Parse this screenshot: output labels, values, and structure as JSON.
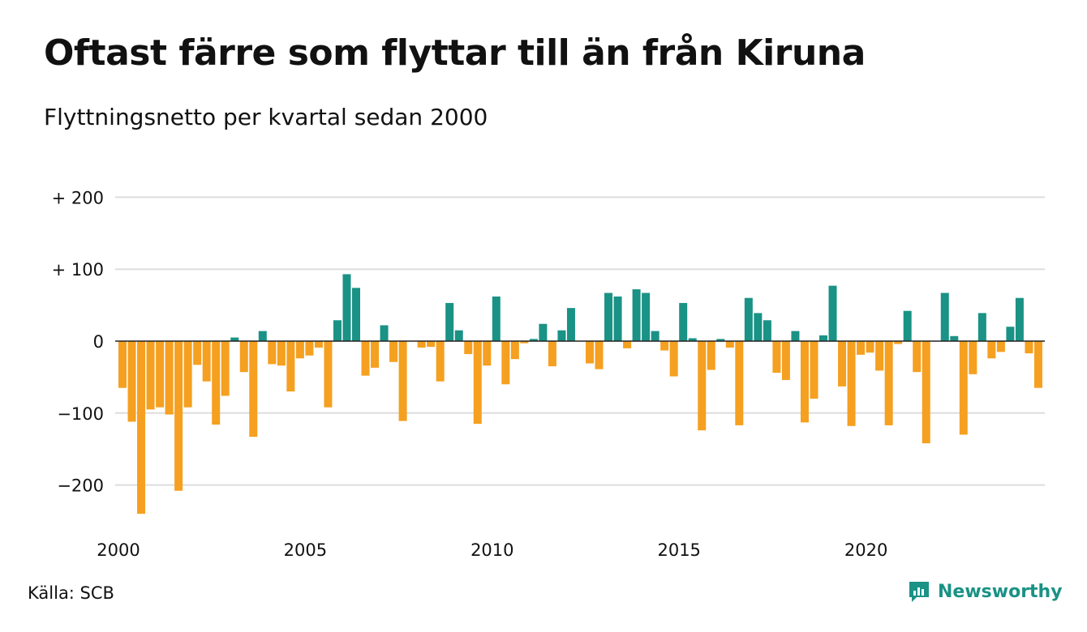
{
  "title": "Oftast färre som flyttar till än från Kiruna",
  "subtitle": "Flyttningsnetto per kvartal sedan 2000",
  "source": "Källa: SCB",
  "brand": {
    "name": "Newsworthy",
    "icon": "newsworthy-logo-icon",
    "color": "#1a9285"
  },
  "colors": {
    "positive": "#1a9285",
    "negative": "#f5a020",
    "grid": "#dddddd",
    "zero_line": "#222222"
  },
  "chart_data": {
    "type": "bar",
    "title": "Oftast färre som flyttar till än från Kiruna",
    "subtitle": "Flyttningsnetto per kvartal sedan 2000",
    "x_start": "2000 Q1",
    "x_ticks": [
      "2000",
      "2005",
      "2010",
      "2015",
      "2020"
    ],
    "y_ticks": [
      200,
      100,
      0,
      -100,
      -200
    ],
    "y_tick_labels": [
      "+ 200",
      "+ 100",
      "0",
      "−100",
      "−200"
    ],
    "ylim": [
      -250,
      200
    ],
    "grid": true,
    "values": [
      -65,
      -112,
      -240,
      -95,
      -92,
      -102,
      -208,
      -92,
      -33,
      -56,
      -116,
      -76,
      5,
      -43,
      -133,
      14,
      -32,
      -34,
      -70,
      -24,
      -20,
      -9,
      -92,
      29,
      93,
      74,
      -48,
      -37,
      22,
      -29,
      -111,
      0,
      -9,
      -8,
      -56,
      53,
      15,
      -18,
      -115,
      -34,
      62,
      -60,
      -25,
      -3,
      3,
      24,
      -35,
      15,
      46,
      0,
      -31,
      -39,
      67,
      62,
      -10,
      72,
      67,
      14,
      -13,
      -49,
      53,
      4,
      -124,
      -40,
      3,
      -9,
      -117,
      60,
      39,
      29,
      -44,
      -54,
      14,
      -113,
      -80,
      8,
      77,
      -63,
      -118,
      -19,
      -16,
      -41,
      -117,
      -4,
      42,
      -43,
      -142,
      0,
      67,
      7,
      -130,
      -46,
      39,
      -24,
      -15,
      20,
      60,
      -17,
      -65
    ]
  }
}
